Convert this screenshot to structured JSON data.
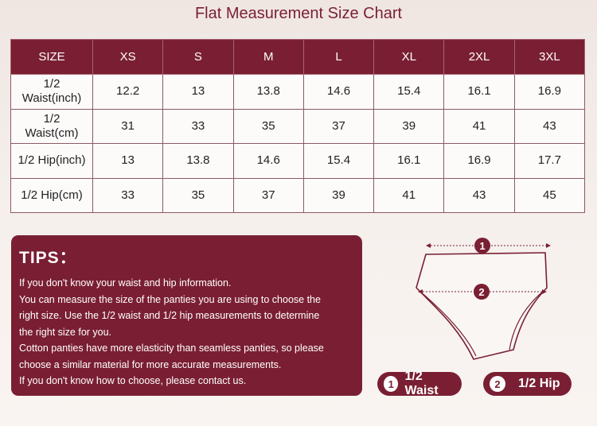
{
  "title": "Flat Measurement Size Chart",
  "table": {
    "header": [
      "SIZE",
      "XS",
      "S",
      "M",
      "L",
      "XL",
      "2XL",
      "3XL"
    ],
    "rows": [
      {
        "label": [
          "1/2",
          "Waist(inch)"
        ],
        "values": [
          "12.2",
          "13",
          "13.8",
          "14.6",
          "15.4",
          "16.1",
          "16.9"
        ]
      },
      {
        "label": [
          "1/2",
          "Waist(cm)"
        ],
        "values": [
          "31",
          "33",
          "35",
          "37",
          "39",
          "41",
          "43"
        ]
      },
      {
        "label": [
          "1/2 Hip(inch)"
        ],
        "values": [
          "13",
          "13.8",
          "14.6",
          "15.4",
          "16.1",
          "16.9",
          "17.7"
        ]
      },
      {
        "label": [
          "1/2 Hip(cm)"
        ],
        "values": [
          "33",
          "35",
          "37",
          "39",
          "41",
          "43",
          "45"
        ]
      }
    ]
  },
  "tips": {
    "heading": "TIPS：",
    "lines": [
      "If you don't know your waist and hip information.",
      "You can measure the size of the panties you are using to choose the",
      "right size. Use the 1/2 waist and 1/2 hip measurements to determine",
      "the right size for you.",
      "Cotton panties have more elasticity than seamless panties, so please",
      "choose a similar material for more accurate measurements.",
      "If you don't know how to choose, please contact us."
    ]
  },
  "diagram": {
    "marker_1": "1",
    "marker_2": "2"
  },
  "legend": [
    {
      "num": "1",
      "label": "1/2 Waist"
    },
    {
      "num": "2",
      "label": "1/2 Hip"
    }
  ],
  "colors": {
    "accent": "#7a1f33",
    "background": "#f5eeeb"
  }
}
